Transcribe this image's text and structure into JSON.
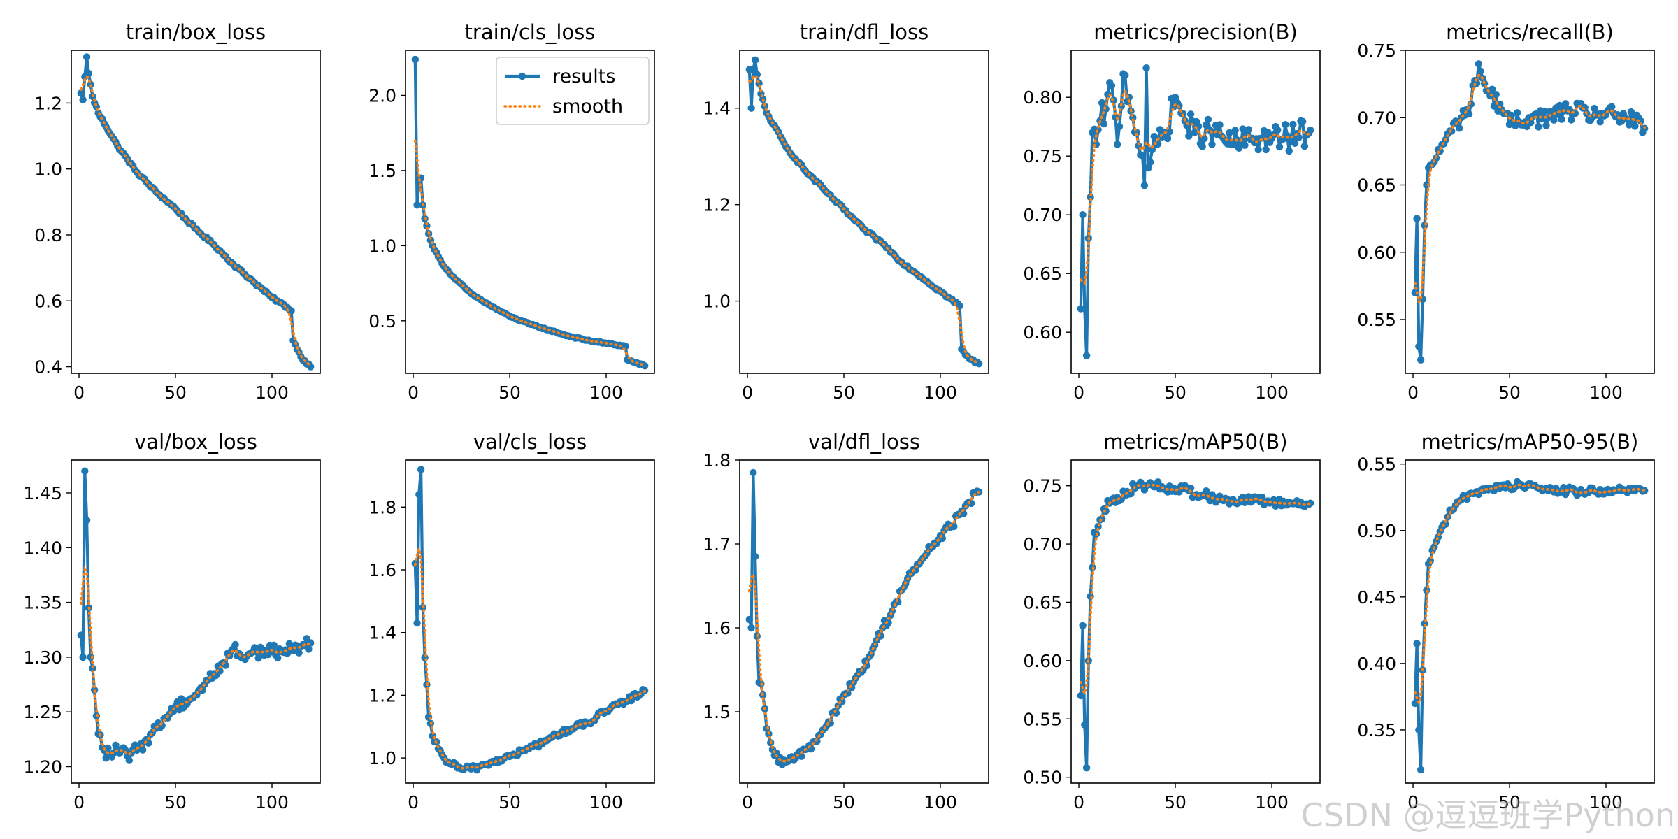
{
  "colors": {
    "results": "#1f77b4",
    "smooth": "#ff7f0e",
    "frame": "#000000",
    "background": "#ffffff"
  },
  "watermark": "CSDN @逗逗班学Python",
  "legend": {
    "location": "upper right",
    "panel": 1,
    "items": [
      "results",
      "smooth"
    ]
  },
  "chart_data": [
    {
      "type": "line",
      "title": "train/box_loss",
      "x_range": [
        1,
        120
      ],
      "xlim": [
        -4,
        125
      ],
      "ylim": [
        0.38,
        1.36
      ],
      "xticks": [
        0,
        50,
        100
      ],
      "yticks": [
        0.4,
        0.6,
        0.8,
        1.0,
        1.2
      ],
      "ytick_labels": [
        "0.4",
        "0.6",
        "0.8",
        "1.0",
        "1.2"
      ],
      "keypoints": [
        [
          1,
          1.23
        ],
        [
          2,
          1.21
        ],
        [
          3,
          1.28
        ],
        [
          4,
          1.34
        ],
        [
          5,
          1.29
        ],
        [
          7,
          1.22
        ],
        [
          10,
          1.17
        ],
        [
          20,
          1.07
        ],
        [
          30,
          0.99
        ],
        [
          40,
          0.93
        ],
        [
          50,
          0.88
        ],
        [
          60,
          0.82
        ],
        [
          70,
          0.77
        ],
        [
          80,
          0.71
        ],
        [
          90,
          0.66
        ],
        [
          100,
          0.61
        ],
        [
          108,
          0.58
        ],
        [
          110,
          0.57
        ],
        [
          111,
          0.48
        ],
        [
          115,
          0.43
        ],
        [
          120,
          0.4
        ]
      ],
      "noise": 0.004
    },
    {
      "type": "line",
      "title": "train/cls_loss",
      "x_range": [
        1,
        120
      ],
      "xlim": [
        -4,
        125
      ],
      "ylim": [
        0.15,
        2.3
      ],
      "xticks": [
        0,
        50,
        100
      ],
      "yticks": [
        0.5,
        1.0,
        1.5,
        2.0
      ],
      "ytick_labels": [
        "0.5",
        "1.0",
        "1.5",
        "2.0"
      ],
      "keypoints": [
        [
          1,
          2.24
        ],
        [
          2,
          1.27
        ],
        [
          3,
          1.42
        ],
        [
          4,
          1.45
        ],
        [
          5,
          1.27
        ],
        [
          6,
          1.18
        ],
        [
          8,
          1.08
        ],
        [
          10,
          1.0
        ],
        [
          15,
          0.88
        ],
        [
          20,
          0.8
        ],
        [
          30,
          0.68
        ],
        [
          40,
          0.6
        ],
        [
          50,
          0.53
        ],
        [
          60,
          0.48
        ],
        [
          70,
          0.44
        ],
        [
          80,
          0.4
        ],
        [
          90,
          0.37
        ],
        [
          100,
          0.35
        ],
        [
          110,
          0.33
        ],
        [
          111,
          0.24
        ],
        [
          120,
          0.2
        ]
      ],
      "noise": 0.004
    },
    {
      "type": "line",
      "title": "train/dfl_loss",
      "x_range": [
        1,
        120
      ],
      "xlim": [
        -4,
        125
      ],
      "ylim": [
        0.85,
        1.52
      ],
      "xticks": [
        0,
        50,
        100
      ],
      "yticks": [
        1.0,
        1.2,
        1.4
      ],
      "ytick_labels": [
        "1.0",
        "1.2",
        "1.4"
      ],
      "keypoints": [
        [
          1,
          1.48
        ],
        [
          2,
          1.4
        ],
        [
          3,
          1.48
        ],
        [
          4,
          1.5
        ],
        [
          5,
          1.47
        ],
        [
          7,
          1.43
        ],
        [
          10,
          1.39
        ],
        [
          20,
          1.32
        ],
        [
          30,
          1.27
        ],
        [
          40,
          1.23
        ],
        [
          50,
          1.19
        ],
        [
          60,
          1.15
        ],
        [
          70,
          1.12
        ],
        [
          80,
          1.08
        ],
        [
          90,
          1.05
        ],
        [
          100,
          1.02
        ],
        [
          110,
          0.99
        ],
        [
          111,
          0.9
        ],
        [
          115,
          0.88
        ],
        [
          120,
          0.87
        ]
      ],
      "noise": 0.003
    },
    {
      "type": "line",
      "title": "metrics/precision(B)",
      "x_range": [
        1,
        120
      ],
      "xlim": [
        -4,
        125
      ],
      "ylim": [
        0.565,
        0.84
      ],
      "xticks": [
        0,
        50,
        100
      ],
      "yticks": [
        0.6,
        0.65,
        0.7,
        0.75,
        0.8
      ],
      "ytick_labels": [
        "0.60",
        "0.65",
        "0.70",
        "0.75",
        "0.80"
      ],
      "keypoints": [
        [
          1,
          0.62
        ],
        [
          2,
          0.7
        ],
        [
          3,
          0.62
        ],
        [
          4,
          0.58
        ],
        [
          5,
          0.68
        ],
        [
          6,
          0.715
        ],
        [
          7,
          0.77
        ],
        [
          9,
          0.76
        ],
        [
          11,
          0.78
        ],
        [
          14,
          0.79
        ],
        [
          17,
          0.81
        ],
        [
          20,
          0.76
        ],
        [
          23,
          0.82
        ],
        [
          26,
          0.8
        ],
        [
          30,
          0.77
        ],
        [
          33,
          0.75
        ],
        [
          34,
          0.725
        ],
        [
          35,
          0.825
        ],
        [
          36,
          0.74
        ],
        [
          40,
          0.76
        ],
        [
          45,
          0.77
        ],
        [
          50,
          0.8
        ],
        [
          55,
          0.78
        ],
        [
          60,
          0.77
        ],
        [
          70,
          0.77
        ],
        [
          80,
          0.76
        ],
        [
          90,
          0.765
        ],
        [
          100,
          0.765
        ],
        [
          110,
          0.765
        ],
        [
          120,
          0.772
        ]
      ],
      "noise": 0.012
    },
    {
      "type": "line",
      "title": "metrics/recall(B)",
      "x_range": [
        1,
        120
      ],
      "xlim": [
        -4,
        125
      ],
      "ylim": [
        0.51,
        0.75
      ],
      "xticks": [
        0,
        50,
        100
      ],
      "yticks": [
        0.55,
        0.6,
        0.65,
        0.7,
        0.75
      ],
      "ytick_labels": [
        "0.55",
        "0.60",
        "0.65",
        "0.70",
        "0.75"
      ],
      "keypoints": [
        [
          1,
          0.57
        ],
        [
          2,
          0.625
        ],
        [
          3,
          0.53
        ],
        [
          4,
          0.52
        ],
        [
          5,
          0.565
        ],
        [
          6,
          0.62
        ],
        [
          7,
          0.65
        ],
        [
          9,
          0.665
        ],
        [
          12,
          0.67
        ],
        [
          15,
          0.68
        ],
        [
          20,
          0.69
        ],
        [
          25,
          0.7
        ],
        [
          30,
          0.71
        ],
        [
          34,
          0.74
        ],
        [
          38,
          0.72
        ],
        [
          45,
          0.71
        ],
        [
          50,
          0.695
        ],
        [
          60,
          0.7
        ],
        [
          70,
          0.7
        ],
        [
          80,
          0.705
        ],
        [
          90,
          0.703
        ],
        [
          100,
          0.702
        ],
        [
          110,
          0.7
        ],
        [
          120,
          0.692
        ]
      ],
      "noise": 0.007
    },
    {
      "type": "line",
      "title": "val/box_loss",
      "x_range": [
        1,
        120
      ],
      "xlim": [
        -4,
        125
      ],
      "ylim": [
        1.185,
        1.48
      ],
      "xticks": [
        0,
        50,
        100
      ],
      "yticks": [
        1.2,
        1.25,
        1.3,
        1.35,
        1.4,
        1.45
      ],
      "ytick_labels": [
        "1.20",
        "1.25",
        "1.30",
        "1.35",
        "1.40",
        "1.45"
      ],
      "keypoints": [
        [
          1,
          1.32
        ],
        [
          2,
          1.3
        ],
        [
          3,
          1.47
        ],
        [
          4,
          1.425
        ],
        [
          5,
          1.345
        ],
        [
          6,
          1.3
        ],
        [
          8,
          1.27
        ],
        [
          10,
          1.23
        ],
        [
          13,
          1.215
        ],
        [
          16,
          1.21
        ],
        [
          20,
          1.215
        ],
        [
          25,
          1.21
        ],
        [
          30,
          1.215
        ],
        [
          35,
          1.225
        ],
        [
          40,
          1.235
        ],
        [
          45,
          1.245
        ],
        [
          50,
          1.255
        ],
        [
          55,
          1.26
        ],
        [
          60,
          1.265
        ],
        [
          65,
          1.275
        ],
        [
          70,
          1.285
        ],
        [
          75,
          1.295
        ],
        [
          80,
          1.308
        ],
        [
          85,
          1.3
        ],
        [
          90,
          1.305
        ],
        [
          95,
          1.305
        ],
        [
          100,
          1.305
        ],
        [
          105,
          1.305
        ],
        [
          110,
          1.308
        ],
        [
          115,
          1.31
        ],
        [
          120,
          1.313
        ]
      ],
      "noise": 0.006
    },
    {
      "type": "line",
      "title": "val/cls_loss",
      "x_range": [
        1,
        120
      ],
      "xlim": [
        -4,
        125
      ],
      "ylim": [
        0.92,
        1.95
      ],
      "xticks": [
        0,
        50,
        100
      ],
      "yticks": [
        1.0,
        1.2,
        1.4,
        1.6,
        1.8
      ],
      "ytick_labels": [
        "1.0",
        "1.2",
        "1.4",
        "1.6",
        "1.8"
      ],
      "keypoints": [
        [
          1,
          1.62
        ],
        [
          2,
          1.43
        ],
        [
          3,
          1.84
        ],
        [
          4,
          1.92
        ],
        [
          5,
          1.48
        ],
        [
          6,
          1.32
        ],
        [
          8,
          1.13
        ],
        [
          10,
          1.07
        ],
        [
          13,
          1.03
        ],
        [
          16,
          1.0
        ],
        [
          20,
          0.98
        ],
        [
          25,
          0.965
        ],
        [
          30,
          0.965
        ],
        [
          35,
          0.975
        ],
        [
          40,
          0.985
        ],
        [
          45,
          0.995
        ],
        [
          50,
          1.005
        ],
        [
          60,
          1.03
        ],
        [
          70,
          1.06
        ],
        [
          80,
          1.09
        ],
        [
          90,
          1.11
        ],
        [
          100,
          1.15
        ],
        [
          110,
          1.18
        ],
        [
          120,
          1.215
        ]
      ],
      "noise": 0.01
    },
    {
      "type": "line",
      "title": "val/dfl_loss",
      "x_range": [
        1,
        120
      ],
      "xlim": [
        -4,
        125
      ],
      "ylim": [
        1.415,
        1.8
      ],
      "xticks": [
        0,
        50,
        100
      ],
      "yticks": [
        1.5,
        1.6,
        1.7,
        1.8
      ],
      "ytick_labels": [
        "1.5",
        "1.6",
        "1.7",
        "1.8"
      ],
      "keypoints": [
        [
          1,
          1.61
        ],
        [
          2,
          1.6
        ],
        [
          3,
          1.785
        ],
        [
          4,
          1.685
        ],
        [
          5,
          1.59
        ],
        [
          6,
          1.535
        ],
        [
          8,
          1.52
        ],
        [
          10,
          1.48
        ],
        [
          13,
          1.455
        ],
        [
          16,
          1.44
        ],
        [
          20,
          1.44
        ],
        [
          25,
          1.445
        ],
        [
          30,
          1.455
        ],
        [
          35,
          1.465
        ],
        [
          40,
          1.48
        ],
        [
          45,
          1.5
        ],
        [
          50,
          1.52
        ],
        [
          55,
          1.535
        ],
        [
          60,
          1.55
        ],
        [
          65,
          1.575
        ],
        [
          70,
          1.6
        ],
        [
          75,
          1.62
        ],
        [
          80,
          1.645
        ],
        [
          85,
          1.665
        ],
        [
          90,
          1.68
        ],
        [
          95,
          1.695
        ],
        [
          100,
          1.71
        ],
        [
          105,
          1.72
        ],
        [
          110,
          1.735
        ],
        [
          115,
          1.75
        ],
        [
          120,
          1.762
        ]
      ],
      "noise": 0.006
    },
    {
      "type": "line",
      "title": "metrics/mAP50(B)",
      "x_range": [
        1,
        120
      ],
      "xlim": [
        -4,
        125
      ],
      "ylim": [
        0.495,
        0.772
      ],
      "xticks": [
        0,
        50,
        100
      ],
      "yticks": [
        0.5,
        0.55,
        0.6,
        0.65,
        0.7,
        0.75
      ],
      "ytick_labels": [
        "0.50",
        "0.55",
        "0.60",
        "0.65",
        "0.70",
        "0.75"
      ],
      "keypoints": [
        [
          1,
          0.57
        ],
        [
          2,
          0.63
        ],
        [
          3,
          0.545
        ],
        [
          4,
          0.508
        ],
        [
          5,
          0.6
        ],
        [
          6,
          0.655
        ],
        [
          7,
          0.68
        ],
        [
          8,
          0.71
        ],
        [
          10,
          0.715
        ],
        [
          13,
          0.73
        ],
        [
          16,
          0.735
        ],
        [
          20,
          0.74
        ],
        [
          25,
          0.745
        ],
        [
          30,
          0.75
        ],
        [
          35,
          0.75
        ],
        [
          40,
          0.75
        ],
        [
          45,
          0.747
        ],
        [
          50,
          0.745
        ],
        [
          55,
          0.75
        ],
        [
          60,
          0.742
        ],
        [
          65,
          0.742
        ],
        [
          70,
          0.74
        ],
        [
          80,
          0.738
        ],
        [
          90,
          0.737
        ],
        [
          100,
          0.736
        ],
        [
          110,
          0.735
        ],
        [
          120,
          0.735
        ]
      ],
      "noise": 0.004
    },
    {
      "type": "line",
      "title": "metrics/mAP50-95(B)",
      "x_range": [
        1,
        120
      ],
      "xlim": [
        -4,
        125
      ],
      "ylim": [
        0.31,
        0.553
      ],
      "xticks": [
        0,
        50,
        100
      ],
      "yticks": [
        0.35,
        0.4,
        0.45,
        0.5,
        0.55
      ],
      "ytick_labels": [
        "0.35",
        "0.40",
        "0.45",
        "0.50",
        "0.55"
      ],
      "keypoints": [
        [
          1,
          0.37
        ],
        [
          2,
          0.415
        ],
        [
          3,
          0.35
        ],
        [
          4,
          0.32
        ],
        [
          5,
          0.395
        ],
        [
          6,
          0.43
        ],
        [
          7,
          0.455
        ],
        [
          8,
          0.475
        ],
        [
          10,
          0.485
        ],
        [
          13,
          0.495
        ],
        [
          16,
          0.505
        ],
        [
          20,
          0.515
        ],
        [
          25,
          0.523
        ],
        [
          30,
          0.528
        ],
        [
          35,
          0.53
        ],
        [
          40,
          0.532
        ],
        [
          45,
          0.532
        ],
        [
          50,
          0.533
        ],
        [
          55,
          0.535
        ],
        [
          60,
          0.535
        ],
        [
          65,
          0.532
        ],
        [
          70,
          0.53
        ],
        [
          80,
          0.53
        ],
        [
          90,
          0.529
        ],
        [
          100,
          0.53
        ],
        [
          110,
          0.53
        ],
        [
          120,
          0.53
        ]
      ],
      "noise": 0.003
    }
  ]
}
